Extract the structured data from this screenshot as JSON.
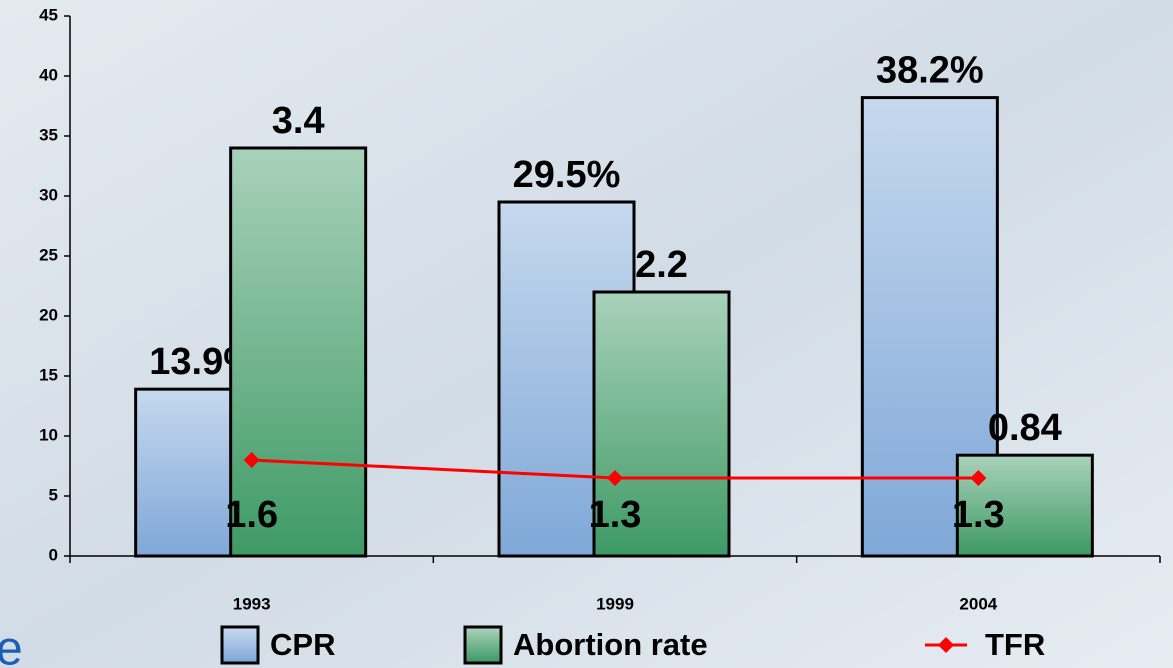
{
  "chart_data": {
    "type": "bar",
    "categories": [
      "1993",
      "1999",
      "2004"
    ],
    "series": [
      {
        "name": "CPR",
        "color": "#7fa8d8",
        "values": [
          13.9,
          29.5,
          38.2
        ],
        "value_labels": [
          "13.9%",
          "29.5%",
          "38.2%"
        ]
      },
      {
        "name": "Abortion rate",
        "color": "#3f9a66",
        "values": [
          34,
          22,
          8.4
        ],
        "value_labels": [
          "3.4",
          "2.2",
          "0.84"
        ]
      },
      {
        "name": "TFR",
        "type": "line",
        "color": "#ff0000",
        "values": [
          8,
          6.5,
          6.5
        ],
        "value_labels": [
          "1.6",
          "1.3",
          "1.3"
        ]
      }
    ],
    "ylim": [
      0,
      45
    ],
    "yticks": [
      0,
      5,
      10,
      15,
      20,
      25,
      30,
      35,
      40,
      45
    ],
    "annotations": [
      "e"
    ],
    "legend": "bottom"
  }
}
